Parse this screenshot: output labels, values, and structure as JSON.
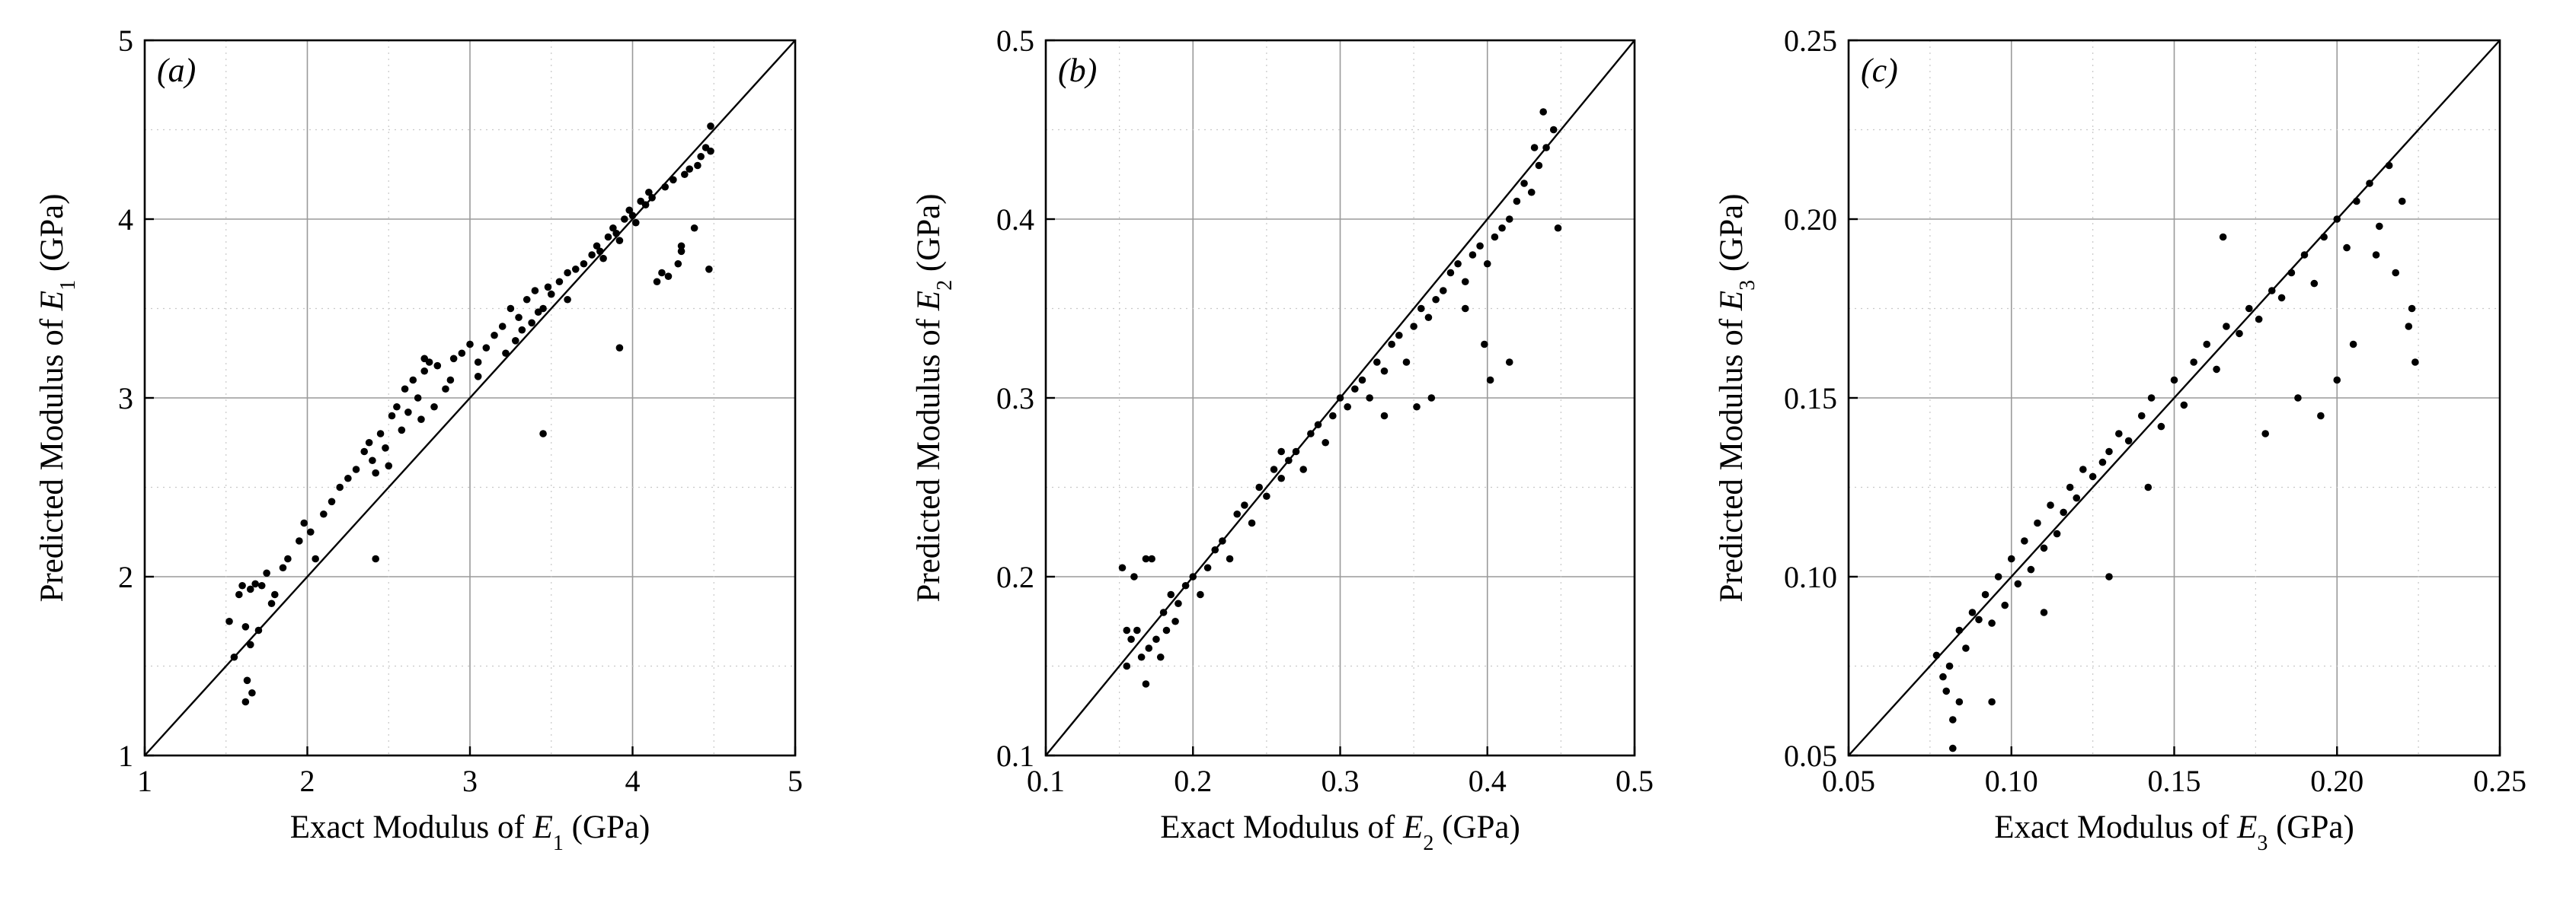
{
  "figure": {
    "panels": [
      "a",
      "b",
      "c"
    ]
  },
  "chart_data": [
    {
      "type": "scatter",
      "panel_label": "(a)",
      "xlabel": "Exact Modulus of E1 (GPa)",
      "ylabel": "Predicted Modulus of E1 (GPa)",
      "xlabel_parts": {
        "prefix": "Exact Modulus of ",
        "var": "E",
        "sub": "1",
        "suffix": " (GPa)"
      },
      "ylabel_parts": {
        "prefix": "Predicted Modulus of ",
        "var": "E",
        "sub": "1",
        "suffix": " (GPa)"
      },
      "xlim": [
        1,
        5
      ],
      "ylim": [
        1,
        5
      ],
      "xticks": [
        1,
        2,
        3,
        4,
        5
      ],
      "yticks": [
        1,
        2,
        3,
        4,
        5
      ],
      "xtick_labels": [
        "1",
        "2",
        "3",
        "4",
        "5"
      ],
      "ytick_labels": [
        "1",
        "2",
        "3",
        "4",
        "5"
      ],
      "grid": true,
      "reference_line": [
        [
          1,
          1
        ],
        [
          5,
          5
        ]
      ],
      "x": [
        1.52,
        1.55,
        1.58,
        1.6,
        1.62,
        1.63,
        1.65,
        1.66,
        1.68,
        1.7,
        1.72,
        1.75,
        1.78,
        1.8,
        1.85,
        1.88,
        1.95,
        1.98,
        2.02,
        2.05,
        2.1,
        2.15,
        2.2,
        2.25,
        2.3,
        2.35,
        2.38,
        2.4,
        2.42,
        2.45,
        2.48,
        2.5,
        2.52,
        2.55,
        2.58,
        2.6,
        2.62,
        2.65,
        2.68,
        2.7,
        2.72,
        2.75,
        2.78,
        2.8,
        2.85,
        2.88,
        2.9,
        2.95,
        3.0,
        3.05,
        3.1,
        3.15,
        3.2,
        3.22,
        3.25,
        3.28,
        3.3,
        3.32,
        3.35,
        3.38,
        3.4,
        3.42,
        3.45,
        3.48,
        3.5,
        3.55,
        3.6,
        3.65,
        3.7,
        3.75,
        3.78,
        3.8,
        3.82,
        3.85,
        3.88,
        3.9,
        3.92,
        3.95,
        3.98,
        4.0,
        4.02,
        4.05,
        4.08,
        4.1,
        4.12,
        4.15,
        4.18,
        4.2,
        4.22,
        4.25,
        4.28,
        4.3,
        4.32,
        4.35,
        4.38,
        4.4,
        4.42,
        4.45,
        4.47,
        4.48,
        2.42,
        3.45,
        3.92,
        1.62,
        1.65,
        4.3,
        4.48,
        2.72,
        3.05,
        3.6
      ],
      "y": [
        1.75,
        1.55,
        1.9,
        1.95,
        1.3,
        1.42,
        1.93,
        1.35,
        1.96,
        1.7,
        1.95,
        2.02,
        1.85,
        1.9,
        2.05,
        2.1,
        2.2,
        2.3,
        2.25,
        2.1,
        2.35,
        2.42,
        2.5,
        2.55,
        2.6,
        2.7,
        2.75,
        2.65,
        2.58,
        2.8,
        2.72,
        2.62,
        2.9,
        2.95,
        2.82,
        3.05,
        2.92,
        3.1,
        3.0,
        2.88,
        3.15,
        3.2,
        2.95,
        3.18,
        3.05,
        3.1,
        3.22,
        3.25,
        3.3,
        3.2,
        3.28,
        3.35,
        3.4,
        3.25,
        3.5,
        3.32,
        3.45,
        3.38,
        3.55,
        3.42,
        3.6,
        3.48,
        3.5,
        3.62,
        3.58,
        3.65,
        3.7,
        3.72,
        3.75,
        3.8,
        3.85,
        3.82,
        3.78,
        3.9,
        3.95,
        3.92,
        3.88,
        4.0,
        4.05,
        4.02,
        3.98,
        4.1,
        4.08,
        4.15,
        4.12,
        3.65,
        3.7,
        4.18,
        3.68,
        4.22,
        3.75,
        3.82,
        4.25,
        4.28,
        3.95,
        4.3,
        4.35,
        4.4,
        3.72,
        4.52,
        2.1,
        2.8,
        3.28,
        1.72,
        1.62,
        3.85,
        4.38,
        3.22,
        3.12,
        3.55
      ]
    },
    {
      "type": "scatter",
      "panel_label": "(b)",
      "xlabel": "Exact Modulus of E2 (GPa)",
      "ylabel": "Predicted Modulus of E2 (GPa)",
      "xlabel_parts": {
        "prefix": "Exact Modulus of ",
        "var": "E",
        "sub": "2",
        "suffix": " (GPa)"
      },
      "ylabel_parts": {
        "prefix": "Predicted Modulus of ",
        "var": "E",
        "sub": "2",
        "suffix": " (GPa)"
      },
      "xlim": [
        0.1,
        0.5
      ],
      "ylim": [
        0.1,
        0.5
      ],
      "xticks": [
        0.1,
        0.2,
        0.3,
        0.4,
        0.5
      ],
      "yticks": [
        0.1,
        0.2,
        0.3,
        0.4,
        0.5
      ],
      "xtick_labels": [
        "0.1",
        "0.2",
        "0.3",
        "0.4",
        "0.5"
      ],
      "ytick_labels": [
        "0.1",
        "0.2",
        "0.3",
        "0.4",
        "0.5"
      ],
      "grid": true,
      "reference_line": [
        [
          0.1,
          0.1
        ],
        [
          0.5,
          0.5
        ]
      ],
      "x": [
        0.152,
        0.155,
        0.158,
        0.16,
        0.162,
        0.165,
        0.168,
        0.17,
        0.172,
        0.175,
        0.178,
        0.18,
        0.182,
        0.185,
        0.188,
        0.19,
        0.195,
        0.2,
        0.205,
        0.21,
        0.215,
        0.22,
        0.225,
        0.23,
        0.235,
        0.24,
        0.245,
        0.25,
        0.255,
        0.26,
        0.265,
        0.27,
        0.275,
        0.28,
        0.285,
        0.29,
        0.295,
        0.3,
        0.305,
        0.31,
        0.315,
        0.32,
        0.325,
        0.33,
        0.335,
        0.34,
        0.345,
        0.35,
        0.355,
        0.36,
        0.365,
        0.37,
        0.375,
        0.38,
        0.385,
        0.39,
        0.395,
        0.4,
        0.405,
        0.41,
        0.415,
        0.42,
        0.425,
        0.43,
        0.435,
        0.44,
        0.445,
        0.448,
        0.438,
        0.432,
        0.402,
        0.398,
        0.352,
        0.362,
        0.385,
        0.415,
        0.155,
        0.168,
        0.26,
        0.33
      ],
      "y": [
        0.205,
        0.15,
        0.165,
        0.2,
        0.17,
        0.155,
        0.14,
        0.16,
        0.21,
        0.165,
        0.155,
        0.18,
        0.17,
        0.19,
        0.175,
        0.185,
        0.195,
        0.2,
        0.19,
        0.205,
        0.215,
        0.22,
        0.21,
        0.235,
        0.24,
        0.23,
        0.25,
        0.245,
        0.26,
        0.255,
        0.265,
        0.27,
        0.26,
        0.28,
        0.285,
        0.275,
        0.29,
        0.3,
        0.295,
        0.305,
        0.31,
        0.3,
        0.32,
        0.315,
        0.33,
        0.335,
        0.32,
        0.34,
        0.35,
        0.345,
        0.355,
        0.36,
        0.37,
        0.375,
        0.365,
        0.38,
        0.385,
        0.375,
        0.39,
        0.395,
        0.4,
        0.41,
        0.42,
        0.415,
        0.43,
        0.44,
        0.45,
        0.395,
        0.46,
        0.44,
        0.31,
        0.33,
        0.295,
        0.3,
        0.35,
        0.32,
        0.17,
        0.21,
        0.27,
        0.29
      ]
    },
    {
      "type": "scatter",
      "panel_label": "(c)",
      "xlabel": "Exact Modulus of E3 (GPa)",
      "ylabel": "Predicted Modulus of E3 (GPa)",
      "xlabel_parts": {
        "prefix": "Exact Modulus of ",
        "var": "E",
        "sub": "3",
        "suffix": " (GPa)"
      },
      "ylabel_parts": {
        "prefix": "Predicted Modulus of ",
        "var": "E",
        "sub": "3",
        "suffix": " (GPa)"
      },
      "xlim": [
        0.05,
        0.25
      ],
      "ylim": [
        0.05,
        0.25
      ],
      "xticks": [
        0.05,
        0.1,
        0.15,
        0.2,
        0.25
      ],
      "yticks": [
        0.05,
        0.1,
        0.15,
        0.2,
        0.25
      ],
      "xtick_labels": [
        "0.05",
        "0.10",
        "0.15",
        "0.20",
        "0.25"
      ],
      "ytick_labels": [
        "0.05",
        "0.10",
        "0.15",
        "0.20",
        "0.25"
      ],
      "grid": true,
      "reference_line": [
        [
          0.05,
          0.05
        ],
        [
          0.25,
          0.25
        ]
      ],
      "x": [
        0.077,
        0.079,
        0.08,
        0.081,
        0.082,
        0.084,
        0.086,
        0.088,
        0.09,
        0.092,
        0.094,
        0.096,
        0.098,
        0.1,
        0.102,
        0.104,
        0.106,
        0.108,
        0.11,
        0.112,
        0.114,
        0.116,
        0.118,
        0.12,
        0.122,
        0.125,
        0.128,
        0.13,
        0.133,
        0.136,
        0.14,
        0.143,
        0.146,
        0.15,
        0.153,
        0.156,
        0.16,
        0.163,
        0.166,
        0.17,
        0.173,
        0.176,
        0.18,
        0.183,
        0.186,
        0.19,
        0.193,
        0.196,
        0.2,
        0.203,
        0.206,
        0.21,
        0.213,
        0.216,
        0.22,
        0.223,
        0.224,
        0.222,
        0.218,
        0.212,
        0.205,
        0.2,
        0.195,
        0.188,
        0.082,
        0.084,
        0.13,
        0.142,
        0.094,
        0.11,
        0.165,
        0.178
      ],
      "y": [
        0.078,
        0.072,
        0.068,
        0.075,
        0.052,
        0.085,
        0.08,
        0.09,
        0.088,
        0.095,
        0.087,
        0.1,
        0.092,
        0.105,
        0.098,
        0.11,
        0.102,
        0.115,
        0.108,
        0.12,
        0.112,
        0.118,
        0.125,
        0.122,
        0.13,
        0.128,
        0.132,
        0.135,
        0.14,
        0.138,
        0.145,
        0.15,
        0.142,
        0.155,
        0.148,
        0.16,
        0.165,
        0.158,
        0.17,
        0.168,
        0.175,
        0.172,
        0.18,
        0.178,
        0.185,
        0.19,
        0.182,
        0.195,
        0.2,
        0.192,
        0.205,
        0.21,
        0.198,
        0.215,
        0.205,
        0.175,
        0.16,
        0.17,
        0.185,
        0.19,
        0.165,
        0.155,
        0.145,
        0.15,
        0.06,
        0.065,
        0.1,
        0.125,
        0.065,
        0.09,
        0.195,
        0.14
      ]
    }
  ]
}
